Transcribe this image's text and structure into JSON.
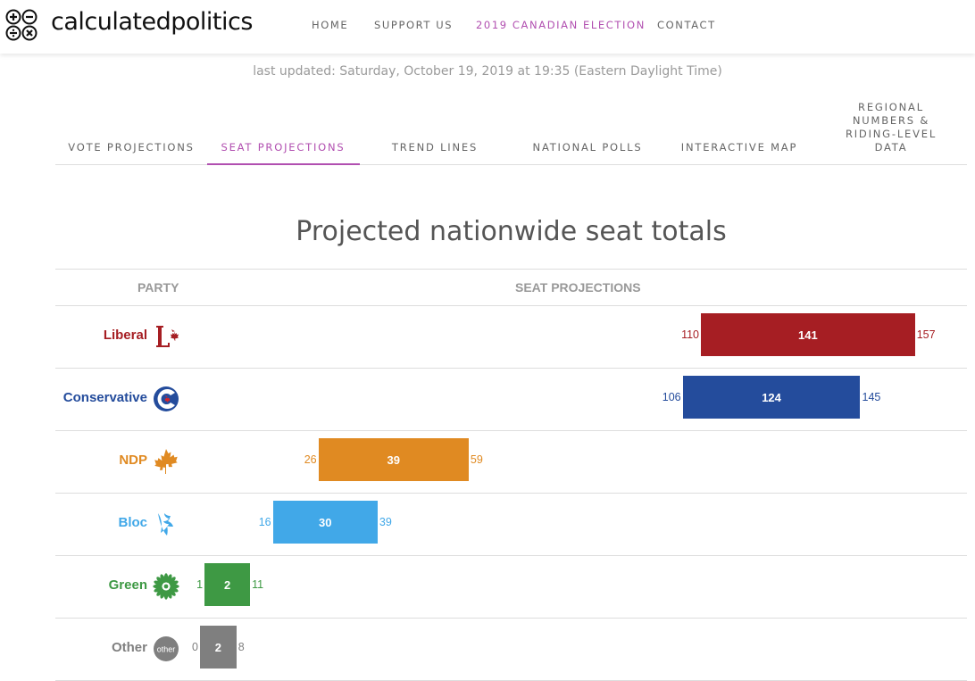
{
  "header": {
    "logo_text": "calculatedpolitics",
    "nav": [
      {
        "label": "HOME"
      },
      {
        "label": "SUPPORT US"
      },
      {
        "label": "2019 CANADIAN ELECTION",
        "active": true
      },
      {
        "label": "CONTACT"
      }
    ]
  },
  "updated_text": "last updated: Saturday, October 19, 2019 at 19:35 (Eastern Daylight Time)",
  "tabs": [
    {
      "label": "VOTE PROJECTIONS"
    },
    {
      "label": "SEAT PROJECTIONS",
      "active": true
    },
    {
      "label": "TREND LINES"
    },
    {
      "label": "NATIONAL POLLS"
    },
    {
      "label": "INTERACTIVE MAP"
    },
    {
      "label": "REGIONAL NUMBERS & RIDING-LEVEL DATA"
    }
  ],
  "colors": {
    "accent": "#b14fb0"
  },
  "chart_data": {
    "type": "bar",
    "title": "Projected nationwide seat totals",
    "column_headers": [
      "PARTY",
      "SEAT PROJECTIONS"
    ],
    "xlim": [
      0,
      170
    ],
    "rows": [
      {
        "party": "Liberal",
        "low": 110,
        "value": 141,
        "high": 157,
        "color": "#a61e23",
        "icon": "liberal-logo-icon"
      },
      {
        "party": "Conservative",
        "low": 106,
        "value": 124,
        "high": 145,
        "color": "#244c9c",
        "icon": "conservative-logo-icon"
      },
      {
        "party": "NDP",
        "low": 26,
        "value": 39,
        "high": 59,
        "color": "#e08a22",
        "icon": "ndp-logo-icon"
      },
      {
        "party": "Bloc",
        "low": 16,
        "value": 30,
        "high": 39,
        "color": "#41a8e8",
        "icon": "bloc-logo-icon"
      },
      {
        "party": "Green",
        "low": 1,
        "value": 2,
        "high": 11,
        "color": "#3e9944",
        "icon": "green-logo-icon"
      },
      {
        "party": "Other",
        "low": 0,
        "value": 2,
        "high": 8,
        "color": "#7f7f7f",
        "icon": "other-logo-icon",
        "icon_label": "other"
      }
    ]
  }
}
